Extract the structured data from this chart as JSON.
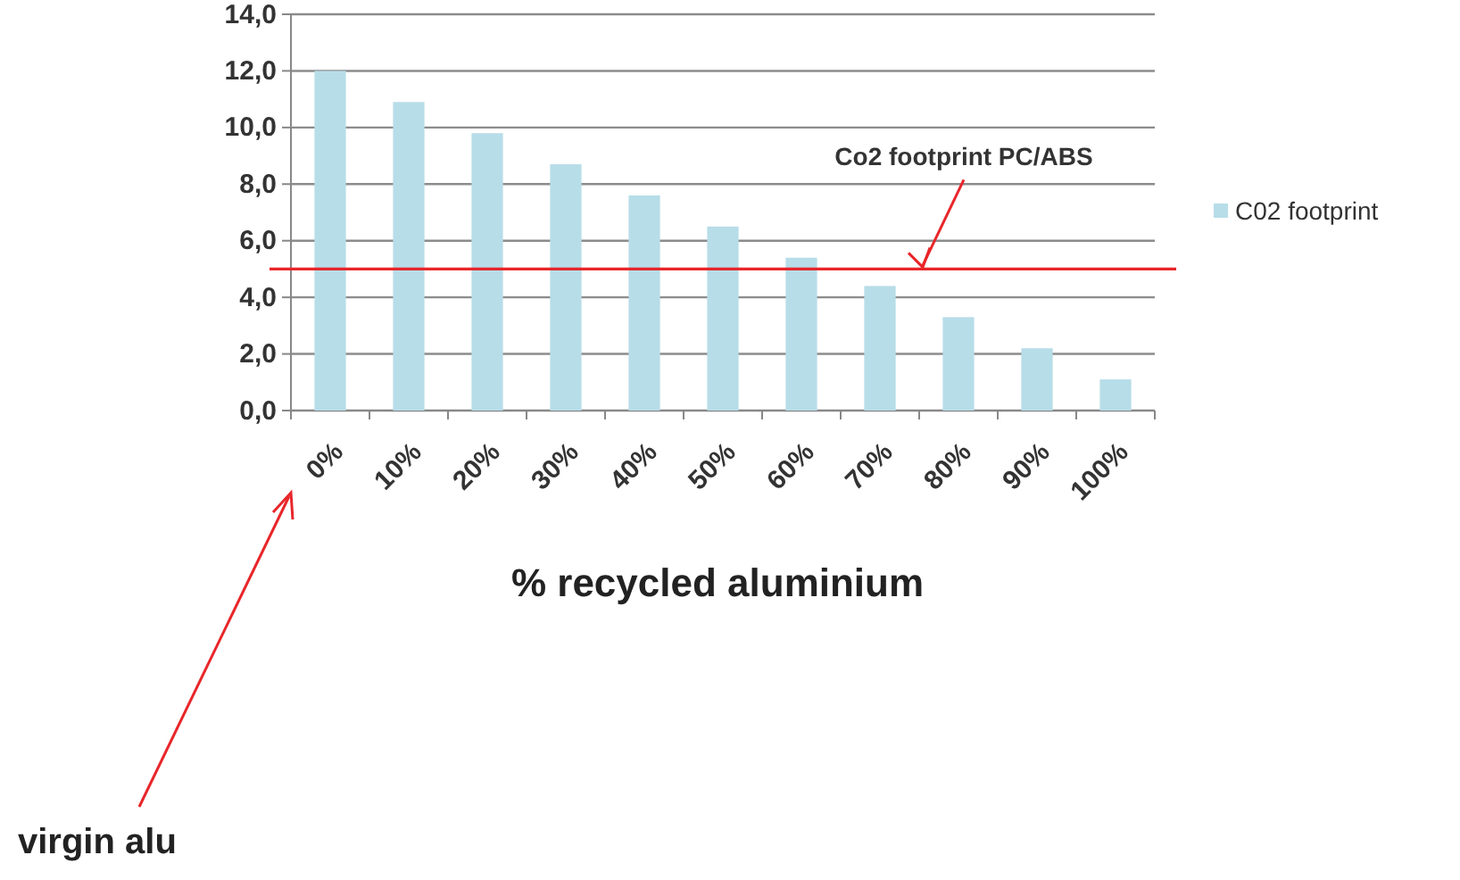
{
  "chart_data": {
    "type": "bar",
    "xlabel": "% recycled aluminium",
    "categories": [
      "0%",
      "10%",
      "20%",
      "30%",
      "40%",
      "50%",
      "60%",
      "70%",
      "80%",
      "90%",
      "100%"
    ],
    "series": [
      {
        "name": "C02 footprint",
        "color": "#b7dde8",
        "values": [
          12.0,
          10.9,
          9.8,
          8.7,
          7.6,
          6.5,
          5.4,
          4.4,
          3.3,
          2.2,
          1.1
        ]
      }
    ],
    "ylim": [
      0,
      14
    ],
    "yticks": [
      {
        "value": 0,
        "label": "0,0"
      },
      {
        "value": 2,
        "label": "2,0"
      },
      {
        "value": 4,
        "label": "4,0"
      },
      {
        "value": 6,
        "label": "6,0"
      },
      {
        "value": 8,
        "label": "8,0"
      },
      {
        "value": 10,
        "label": "10,0"
      },
      {
        "value": 12,
        "label": "12,0"
      },
      {
        "value": 14,
        "label": "14,0"
      }
    ],
    "grid": "y",
    "legend": "right",
    "ref_lines": [
      {
        "axis": "y",
        "value": 5.0,
        "label": "Co2 footprint PC/ABS",
        "color": "#e8262a"
      }
    ],
    "annotations": [
      "virgin alu"
    ]
  }
}
